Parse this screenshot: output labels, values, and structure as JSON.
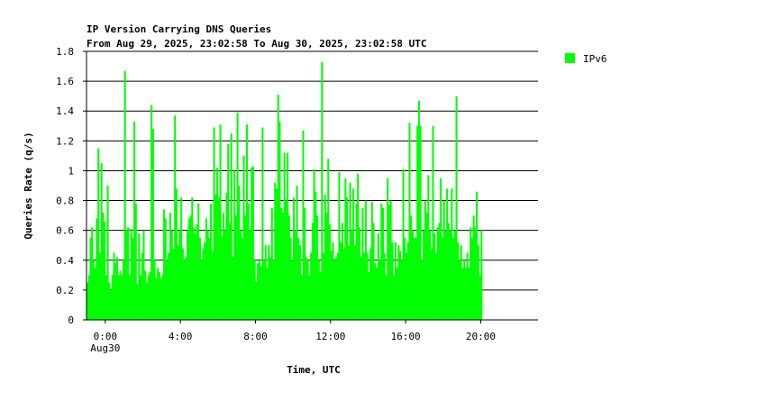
{
  "chart_data": {
    "type": "bar",
    "title": "IP Version Carrying DNS Queries",
    "subtitle": "From Aug 29, 2025, 23:02:58 To Aug 30, 2025, 23:02:58 UTC",
    "xlabel": "Time, UTC",
    "ylabel": "Queries Rate (q/s)",
    "ylim": [
      0,
      1.8
    ],
    "xlim_hours": [
      -1.0,
      23.05
    ],
    "y_ticks": [
      "0",
      "0.2",
      "0.4",
      "0.6",
      "0.8",
      "1",
      "1.2",
      "1.4",
      "1.6",
      "1.8"
    ],
    "x_ticks": [
      {
        "hour": 0,
        "label": "0:00",
        "sublabel": "Aug30"
      },
      {
        "hour": 4,
        "label": "4:00",
        "sublabel": ""
      },
      {
        "hour": 8,
        "label": "8:00",
        "sublabel": ""
      },
      {
        "hour": 12,
        "label": "12:00",
        "sublabel": ""
      },
      {
        "hour": 16,
        "label": "16:00",
        "sublabel": ""
      },
      {
        "hour": 20,
        "label": "20:00",
        "sublabel": ""
      }
    ],
    "grid": "horizontal",
    "legend_position": "right",
    "series": [
      {
        "name": "IPv6",
        "color": "#00ff00",
        "x_start_hour": -1.0,
        "x_step_hours": 0.0833,
        "values": [
          0.25,
          0.3,
          0.55,
          0.62,
          0.4,
          0.35,
          0.68,
          1.15,
          0.45,
          1.05,
          0.72,
          0.66,
          0.3,
          0.9,
          0.25,
          0.2,
          0.3,
          0.45,
          0.38,
          0.42,
          0.3,
          0.33,
          0.3,
          0.4,
          1.67,
          0.6,
          0.62,
          0.3,
          0.61,
          0.55,
          1.33,
          0.78,
          0.24,
          0.58,
          0.3,
          0.45,
          0.6,
          0.33,
          0.25,
          0.3,
          0.32,
          1.44,
          1.28,
          0.4,
          0.28,
          0.35,
          0.32,
          0.28,
          0.3,
          0.74,
          0.68,
          0.4,
          0.45,
          0.72,
          0.6,
          0.48,
          1.37,
          0.88,
          0.5,
          0.6,
          0.82,
          0.48,
          0.4,
          0.42,
          0.6,
          0.68,
          0.7,
          0.82,
          0.62,
          0.58,
          0.64,
          0.78,
          0.55,
          0.4,
          0.48,
          0.52,
          0.68,
          0.6,
          0.55,
          0.78,
          0.46,
          1.29,
          0.84,
          1.02,
          0.82,
          1.31,
          0.56,
          0.72,
          0.6,
          0.85,
          1.18,
          0.65,
          1.25,
          0.42,
          1.0,
          0.7,
          1.39,
          0.9,
          0.6,
          0.55,
          1.1,
          0.7,
          1.31,
          0.78,
          0.6,
          1.02,
          1.03,
          0.4,
          0.26,
          0.38,
          0.4,
          0.36,
          1.29,
          0.4,
          0.5,
          0.35,
          0.5,
          0.42,
          0.75,
          0.4,
          0.92,
          0.88,
          1.51,
          1.33,
          0.75,
          0.72,
          1.12,
          0.8,
          1.12,
          0.7,
          0.55,
          0.4,
          0.82,
          0.6,
          0.9,
          0.55,
          0.5,
          0.3,
          1.27,
          0.75,
          0.42,
          0.4,
          0.3,
          0.45,
          0.65,
          1.01,
          0.86,
          0.7,
          0.4,
          0.32,
          1.73,
          0.45,
          0.84,
          0.72,
          1.08,
          0.64,
          0.46,
          0.52,
          0.4,
          0.42,
          0.45,
          0.99,
          0.52,
          0.65,
          0.48,
          0.95,
          0.82,
          0.5,
          0.92,
          0.6,
          0.88,
          0.5,
          0.78,
          0.98,
          0.62,
          0.42,
          0.75,
          0.45,
          0.8,
          0.45,
          0.32,
          0.48,
          0.79,
          0.65,
          0.38,
          0.35,
          0.58,
          0.4,
          0.78,
          0.75,
          0.45,
          0.3,
          0.95,
          0.77,
          0.8,
          0.52,
          0.3,
          0.52,
          0.35,
          0.5,
          0.46,
          0.4,
          1.01,
          0.55,
          0.45,
          0.52,
          1.32,
          0.7,
          0.6,
          0.55,
          0.55,
          1.3,
          1.47,
          1.3,
          0.4,
          0.6,
          0.8,
          0.72,
          0.97,
          0.6,
          0.48,
          1.3,
          0.58,
          0.45,
          0.62,
          0.65,
          0.95,
          0.55,
          0.8,
          0.6,
          0.88,
          0.65,
          0.6,
          0.88,
          0.55,
          0.6,
          1.5,
          0.52,
          0.4,
          0.5,
          0.35,
          0.4,
          0.35,
          0.45,
          0.35,
          0.62,
          0.55,
          0.7,
          0.62,
          0.86,
          0.5,
          0.3,
          0.6
        ]
      }
    ]
  }
}
